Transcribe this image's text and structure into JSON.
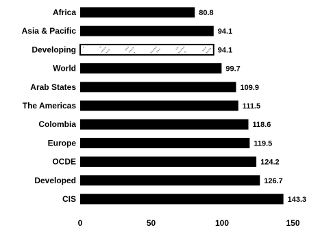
{
  "chart_data": {
    "type": "bar",
    "orientation": "horizontal",
    "categories": [
      "Africa",
      "Asia & Pacific",
      "Developing",
      "World",
      "Arab States",
      "The Americas",
      "Colombia",
      "Europe",
      "OCDE",
      "Developed",
      "CIS"
    ],
    "values": [
      80.8,
      94.1,
      94.1,
      99.7,
      109.9,
      111.5,
      118.6,
      119.5,
      124.2,
      126.7,
      143.3
    ],
    "value_labels": [
      "80.8",
      "94.1",
      "94.1",
      "99.7",
      "109.9",
      "111.5",
      "118.6",
      "119.5",
      "124.2",
      "126.7",
      "143.3"
    ],
    "highlight_category": "Developing",
    "xlim": [
      0,
      150
    ],
    "x_ticks": [
      0,
      50,
      100,
      150
    ],
    "x_tick_labels": [
      "0",
      "50",
      "100",
      "150"
    ],
    "grid": false,
    "legend": "none",
    "bar_color": "#000000",
    "highlight_color": "#ffffff",
    "title": "",
    "xlabel": "",
    "ylabel": ""
  }
}
